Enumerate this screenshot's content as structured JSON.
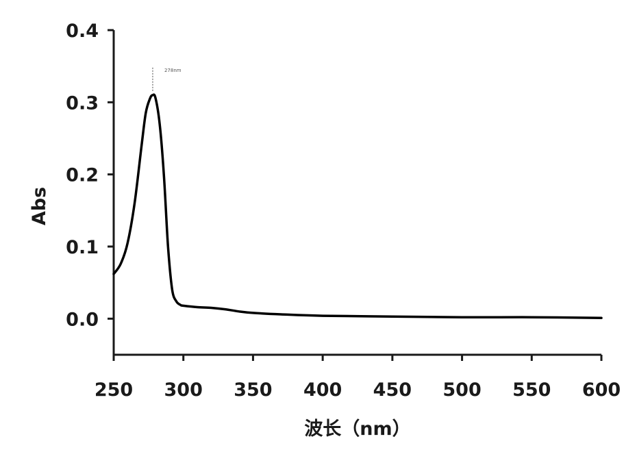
{
  "chart_data": {
    "type": "line",
    "title": "",
    "xlabel": "波长（nm）",
    "ylabel": "Abs",
    "xlim": [
      250,
      600
    ],
    "ylim": [
      -0.05,
      0.4
    ],
    "xticks": [
      250,
      300,
      350,
      400,
      450,
      500,
      550,
      600
    ],
    "yticks": [
      0.0,
      0.1,
      0.2,
      0.3,
      0.4
    ],
    "ytick_labels": [
      "0.0",
      "0.1",
      "0.2",
      "0.3",
      "0.4"
    ],
    "grid": false,
    "legend": "none",
    "line_color": "#000000",
    "annotations": [
      {
        "x": 278,
        "y": 0.31,
        "text": "278nm"
      }
    ],
    "series": [
      {
        "x": [
          250,
          255,
          260,
          265,
          270,
          273,
          276,
          278,
          280,
          283,
          286,
          289,
          292,
          295,
          298,
          300,
          310,
          320,
          330,
          340,
          350,
          370,
          400,
          450,
          500,
          550,
          600
        ],
        "y": [
          0.062,
          0.076,
          0.105,
          0.16,
          0.24,
          0.285,
          0.305,
          0.31,
          0.306,
          0.27,
          0.2,
          0.1,
          0.04,
          0.024,
          0.019,
          0.018,
          0.016,
          0.015,
          0.013,
          0.01,
          0.008,
          0.006,
          0.004,
          0.003,
          0.002,
          0.002,
          0.001
        ]
      }
    ]
  }
}
